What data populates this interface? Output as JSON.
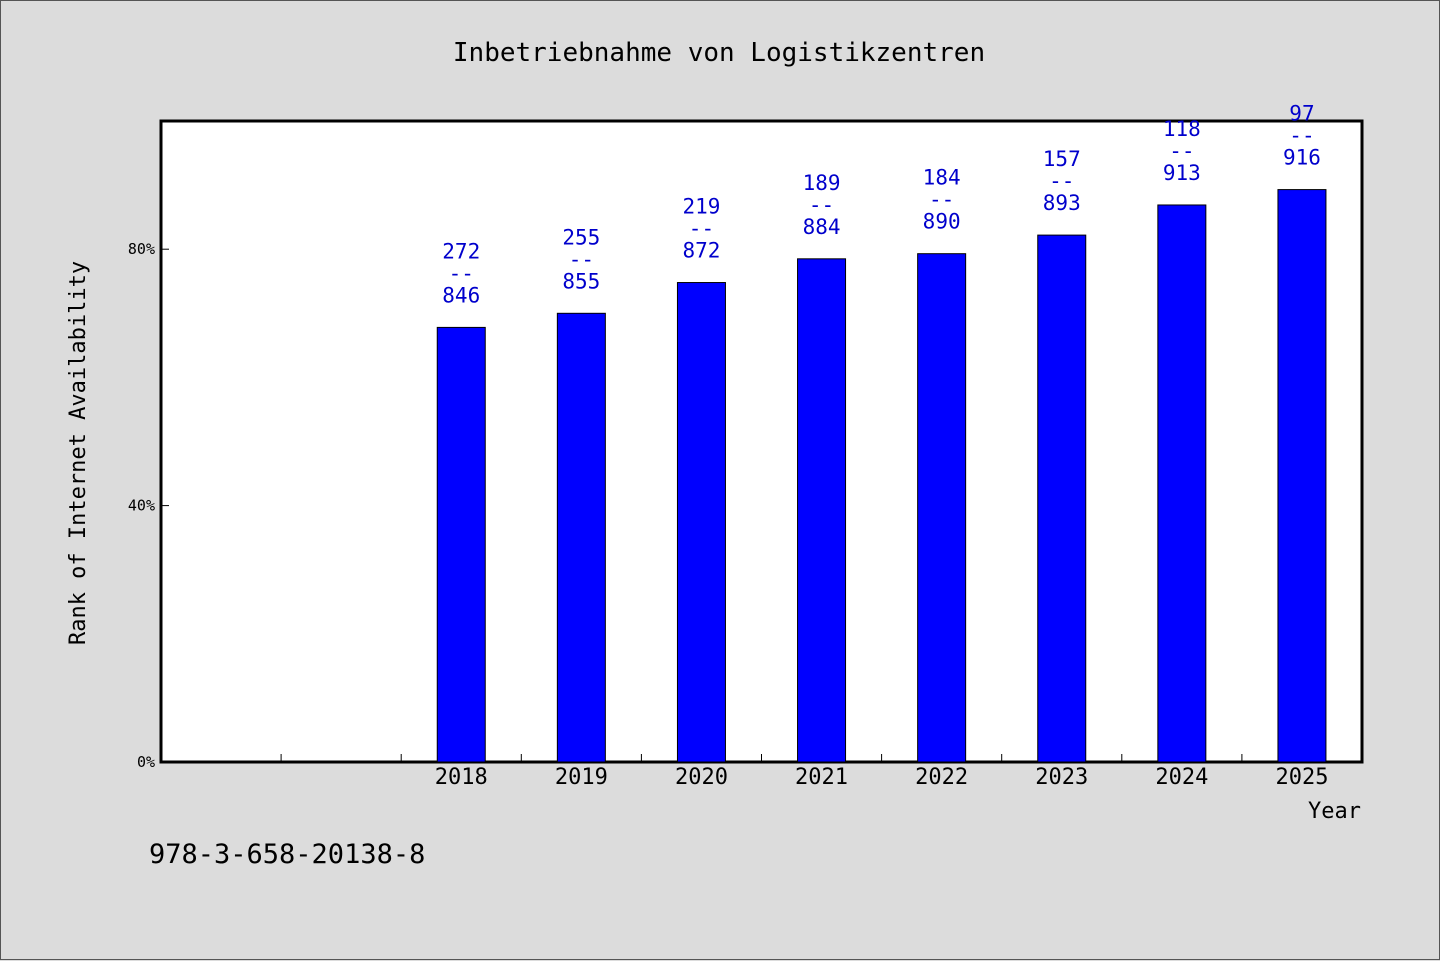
{
  "colors": {
    "background": "#dcdcdc",
    "plot_background": "#ffffff",
    "bar": "#0000ff",
    "data_label": "#0000cc"
  },
  "footnote": "978-3-658-20138-8",
  "chart_data": {
    "type": "bar",
    "title": "Inbetriebnahme von Logistikzentren",
    "xlabel": "Year",
    "ylabel": "Rank of Internet Availability",
    "categories": [
      "",
      "",
      "2018",
      "2019",
      "2020",
      "2021",
      "2022",
      "2023",
      "2024",
      "2025"
    ],
    "series": [
      {
        "values": [
          null,
          null,
          67.8,
          70.0,
          74.8,
          78.5,
          79.3,
          82.2,
          86.9,
          89.3
        ],
        "labels_top": [
          null,
          null,
          "272",
          "255",
          "219",
          "189",
          "184",
          "157",
          "118",
          "97"
        ],
        "labels_bottom": [
          null,
          null,
          "846",
          "855",
          "872",
          "884",
          "890",
          "893",
          "913",
          "916"
        ]
      }
    ],
    "ylim": [
      0,
      100
    ],
    "yticks": [
      0,
      40,
      80
    ],
    "ytick_labels": [
      "0%",
      "40%",
      "80%"
    ],
    "label_separator": "--",
    "grid": false,
    "legend": "none"
  }
}
